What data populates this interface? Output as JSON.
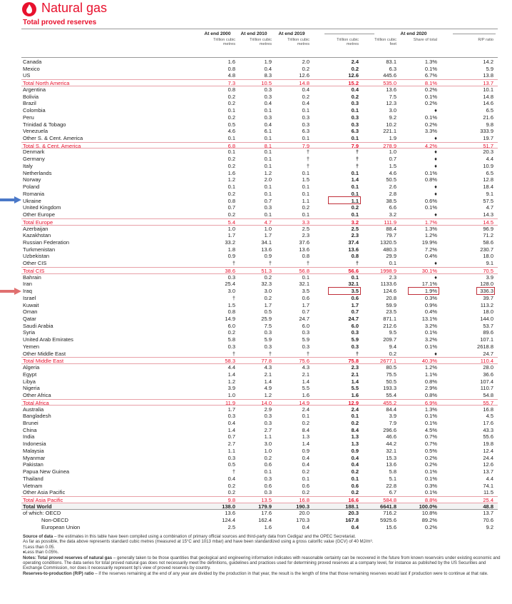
{
  "header": {
    "title": "Natural gas",
    "subtitle": "Total proved reserves"
  },
  "table": {
    "year_headers": [
      "At end 2000",
      "At end 2010",
      "At end 2019",
      "At end 2020"
    ],
    "units": [
      "Trillion cubic metres",
      "Trillion cubic metres",
      "Trillion cubic metres",
      "Trillion cubic metres",
      "Trillion cubic feet",
      "Share of total",
      "R/P ratio"
    ],
    "rows": [
      {
        "cells": [
          "Canada",
          "1.6",
          "1.9",
          "2.0",
          "2.4",
          "83.1",
          "1.3%",
          "14.2"
        ]
      },
      {
        "cells": [
          "Mexico",
          "0.8",
          "0.4",
          "0.2",
          "0.2",
          "6.3",
          "0.1%",
          "5.9"
        ]
      },
      {
        "cells": [
          "US",
          "4.8",
          "8.3",
          "12.6",
          "12.6",
          "445.6",
          "6.7%",
          "13.8"
        ]
      },
      {
        "cells": [
          "Total North America",
          "7.3",
          "10.5",
          "14.8",
          "15.2",
          "535.0",
          "8.1%",
          "13.7"
        ],
        "total": true
      },
      {
        "cells": [
          "Argentina",
          "0.8",
          "0.3",
          "0.4",
          "0.4",
          "13.6",
          "0.2%",
          "10.1"
        ]
      },
      {
        "cells": [
          "Bolivia",
          "0.2",
          "0.3",
          "0.2",
          "0.2",
          "7.5",
          "0.1%",
          "14.8"
        ]
      },
      {
        "cells": [
          "Brazil",
          "0.2",
          "0.4",
          "0.4",
          "0.3",
          "12.3",
          "0.2%",
          "14.6"
        ]
      },
      {
        "cells": [
          "Colombia",
          "0.1",
          "0.1",
          "0.1",
          "0.1",
          "3.0",
          "♦",
          "6.5"
        ]
      },
      {
        "cells": [
          "Peru",
          "0.2",
          "0.3",
          "0.3",
          "0.3",
          "9.2",
          "0.1%",
          "21.6"
        ]
      },
      {
        "cells": [
          "Trinidad & Tobago",
          "0.5",
          "0.4",
          "0.3",
          "0.3",
          "10.2",
          "0.2%",
          "9.8"
        ]
      },
      {
        "cells": [
          "Venezuela",
          "4.6",
          "6.1",
          "6.3",
          "6.3",
          "221.1",
          "3.3%",
          "333.9"
        ]
      },
      {
        "cells": [
          "Other S. & Cent. America",
          "0.1",
          "0.1",
          "0.1",
          "0.1",
          "1.9",
          "♦",
          "19.7"
        ]
      },
      {
        "cells": [
          "Total S. & Cent. America",
          "6.8",
          "8.1",
          "7.9",
          "7.9",
          "278.9",
          "4.2%",
          "51.7"
        ],
        "total": true
      },
      {
        "cells": [
          "Denmark",
          "0.1",
          "0.1",
          "†",
          "†",
          "1.0",
          "♦",
          "20.3"
        ]
      },
      {
        "cells": [
          "Germany",
          "0.2",
          "0.1",
          "†",
          "†",
          "0.7",
          "♦",
          "4.4"
        ]
      },
      {
        "cells": [
          "Italy",
          "0.2",
          "0.1",
          "†",
          "†",
          "1.5",
          "♦",
          "10.9"
        ]
      },
      {
        "cells": [
          "Netherlands",
          "1.6",
          "1.2",
          "0.1",
          "0.1",
          "4.6",
          "0.1%",
          "6.5"
        ]
      },
      {
        "cells": [
          "Norway",
          "1.2",
          "2.0",
          "1.5",
          "1.4",
          "50.5",
          "0.8%",
          "12.8"
        ]
      },
      {
        "cells": [
          "Poland",
          "0.1",
          "0.1",
          "0.1",
          "0.1",
          "2.6",
          "♦",
          "18.4"
        ]
      },
      {
        "cells": [
          "Romania",
          "0.2",
          "0.1",
          "0.1",
          "0.1",
          "2.8",
          "♦",
          "9.1"
        ]
      },
      {
        "cells": [
          "Ukraine",
          "0.8",
          "0.7",
          "1.1",
          "1.1",
          "38.5",
          "0.6%",
          "57.5"
        ]
      },
      {
        "cells": [
          "United Kingdom",
          "0.7",
          "0.3",
          "0.2",
          "0.2",
          "6.6",
          "0.1%",
          "4.7"
        ]
      },
      {
        "cells": [
          "Other Europe",
          "0.2",
          "0.1",
          "0.1",
          "0.1",
          "3.2",
          "♦",
          "14.3"
        ]
      },
      {
        "cells": [
          "Total Europe",
          "5.4",
          "4.7",
          "3.3",
          "3.2",
          "111.9",
          "1.7%",
          "14.5"
        ],
        "total": true
      },
      {
        "cells": [
          "Azerbaijan",
          "1.0",
          "1.0",
          "2.5",
          "2.5",
          "88.4",
          "1.3%",
          "96.9"
        ]
      },
      {
        "cells": [
          "Kazakhstan",
          "1.7",
          "1.7",
          "2.3",
          "2.3",
          "79.7",
          "1.2%",
          "71.2"
        ]
      },
      {
        "cells": [
          "Russian Federation",
          "33.2",
          "34.1",
          "37.6",
          "37.4",
          "1320.5",
          "19.9%",
          "58.6"
        ]
      },
      {
        "cells": [
          "Turkmenistan",
          "1.8",
          "13.6",
          "13.6",
          "13.6",
          "480.3",
          "7.2%",
          "230.7"
        ]
      },
      {
        "cells": [
          "Uzbekistan",
          "0.9",
          "0.9",
          "0.8",
          "0.8",
          "29.9",
          "0.4%",
          "18.0"
        ]
      },
      {
        "cells": [
          "Other CIS",
          "†",
          "†",
          "†",
          "†",
          "0.1",
          "♦",
          "9.1"
        ]
      },
      {
        "cells": [
          "Total CIS",
          "38.6",
          "51.3",
          "56.8",
          "56.6",
          "1998.9",
          "30.1%",
          "70.5"
        ],
        "total": true
      },
      {
        "cells": [
          "Bahrain",
          "0.3",
          "0.2",
          "0.1",
          "0.1",
          "2.3",
          "♦",
          "3.9"
        ]
      },
      {
        "cells": [
          "Iran",
          "25.4",
          "32.3",
          "32.1",
          "32.1",
          "1133.6",
          "17.1%",
          "128.0"
        ]
      },
      {
        "cells": [
          "Iraq",
          "3.0",
          "3.0",
          "3.5",
          "3.5",
          "124.6",
          "1.9%",
          "336.3"
        ]
      },
      {
        "cells": [
          "Israel",
          "†",
          "0.2",
          "0.6",
          "0.6",
          "20.8",
          "0.3%",
          "39.7"
        ]
      },
      {
        "cells": [
          "Kuwait",
          "1.5",
          "1.7",
          "1.7",
          "1.7",
          "59.9",
          "0.9%",
          "113.2"
        ]
      },
      {
        "cells": [
          "Oman",
          "0.8",
          "0.5",
          "0.7",
          "0.7",
          "23.5",
          "0.4%",
          "18.0"
        ]
      },
      {
        "cells": [
          "Qatar",
          "14.9",
          "25.9",
          "24.7",
          "24.7",
          "871.1",
          "13.1%",
          "144.0"
        ]
      },
      {
        "cells": [
          "Saudi Arabia",
          "6.0",
          "7.5",
          "6.0",
          "6.0",
          "212.6",
          "3.2%",
          "53.7"
        ]
      },
      {
        "cells": [
          "Syria",
          "0.2",
          "0.3",
          "0.3",
          "0.3",
          "9.5",
          "0.1%",
          "89.6"
        ]
      },
      {
        "cells": [
          "United Arab Emirates",
          "5.8",
          "5.9",
          "5.9",
          "5.9",
          "209.7",
          "3.2%",
          "107.1"
        ]
      },
      {
        "cells": [
          "Yemen",
          "0.3",
          "0.3",
          "0.3",
          "0.3",
          "9.4",
          "0.1%",
          "2618.8"
        ]
      },
      {
        "cells": [
          "Other Middle East",
          "†",
          "†",
          "†",
          "†",
          "0.2",
          "♦",
          "24.7"
        ]
      },
      {
        "cells": [
          "Total Middle East",
          "58.3",
          "77.8",
          "75.6",
          "75.8",
          "2677.1",
          "40.3%",
          "110.4"
        ],
        "total": true
      },
      {
        "cells": [
          "Algeria",
          "4.4",
          "4.3",
          "4.3",
          "2.3",
          "80.5",
          "1.2%",
          "28.0"
        ]
      },
      {
        "cells": [
          "Egypt",
          "1.4",
          "2.1",
          "2.1",
          "2.1",
          "75.5",
          "1.1%",
          "36.6"
        ]
      },
      {
        "cells": [
          "Libya",
          "1.2",
          "1.4",
          "1.4",
          "1.4",
          "50.5",
          "0.8%",
          "107.4"
        ]
      },
      {
        "cells": [
          "Nigeria",
          "3.9",
          "4.9",
          "5.5",
          "5.5",
          "193.3",
          "2.9%",
          "110.7"
        ]
      },
      {
        "cells": [
          "Other Africa",
          "1.0",
          "1.2",
          "1.6",
          "1.6",
          "55.4",
          "0.8%",
          "54.8"
        ]
      },
      {
        "cells": [
          "Total Africa",
          "11.9",
          "14.0",
          "14.9",
          "12.9",
          "455.2",
          "6.9%",
          "55.7"
        ],
        "total": true
      },
      {
        "cells": [
          "Australia",
          "1.7",
          "2.9",
          "2.4",
          "2.4",
          "84.4",
          "1.3%",
          "16.8"
        ]
      },
      {
        "cells": [
          "Bangladesh",
          "0.3",
          "0.3",
          "0.1",
          "0.1",
          "3.9",
          "0.1%",
          "4.5"
        ]
      },
      {
        "cells": [
          "Brunei",
          "0.4",
          "0.3",
          "0.2",
          "0.2",
          "7.9",
          "0.1%",
          "17.6"
        ]
      },
      {
        "cells": [
          "China",
          "1.4",
          "2.7",
          "8.4",
          "8.4",
          "296.6",
          "4.5%",
          "43.3"
        ]
      },
      {
        "cells": [
          "India",
          "0.7",
          "1.1",
          "1.3",
          "1.3",
          "46.6",
          "0.7%",
          "55.6"
        ]
      },
      {
        "cells": [
          "Indonesia",
          "2.7",
          "3.0",
          "1.4",
          "1.3",
          "44.2",
          "0.7%",
          "19.8"
        ]
      },
      {
        "cells": [
          "Malaysia",
          "1.1",
          "1.0",
          "0.9",
          "0.9",
          "32.1",
          "0.5%",
          "12.4"
        ]
      },
      {
        "cells": [
          "Myanmar",
          "0.3",
          "0.2",
          "0.4",
          "0.4",
          "15.3",
          "0.2%",
          "24.4"
        ]
      },
      {
        "cells": [
          "Pakistan",
          "0.5",
          "0.6",
          "0.4",
          "0.4",
          "13.6",
          "0.2%",
          "12.6"
        ]
      },
      {
        "cells": [
          "Papua New Guinea",
          "†",
          "0.1",
          "0.2",
          "0.2",
          "5.8",
          "0.1%",
          "13.7"
        ]
      },
      {
        "cells": [
          "Thailand",
          "0.4",
          "0.3",
          "0.1",
          "0.1",
          "5.1",
          "0.1%",
          "4.4"
        ]
      },
      {
        "cells": [
          "Vietnam",
          "0.2",
          "0.6",
          "0.6",
          "0.6",
          "22.8",
          "0.3%",
          "74.1"
        ]
      },
      {
        "cells": [
          "Other Asia Pacific",
          "0.2",
          "0.3",
          "0.2",
          "0.2",
          "6.7",
          "0.1%",
          "11.5"
        ]
      },
      {
        "cells": [
          "Total Asia Pacific",
          "9.8",
          "13.5",
          "16.8",
          "16.6",
          "584.8",
          "8.8%",
          "25.4"
        ],
        "total": true
      },
      {
        "cells": [
          "Total World",
          "138.0",
          "179.9",
          "190.3",
          "188.1",
          "6641.8",
          "100.0%",
          "48.8"
        ],
        "world": true
      },
      {
        "cells": [
          "of which: OECD",
          "13.6",
          "17.6",
          "20.0",
          "20.3",
          "716.2",
          "10.8%",
          "13.7"
        ]
      },
      {
        "cells": [
          "Non-OECD",
          "124.4",
          "162.4",
          "170.3",
          "167.8",
          "5925.6",
          "89.2%",
          "70.6"
        ],
        "indent": true
      },
      {
        "cells": [
          "European Union",
          "2.5",
          "1.6",
          "0.4",
          "0.4",
          "15.6",
          "0.2%",
          "9.2"
        ],
        "indent": true
      }
    ]
  },
  "notes": {
    "source_lead": "Source of data",
    "source_text": " – the estimates in this table have been compiled using a combination of primary official sources and third-party data from Cedigaz and the OPEC Secretariat.",
    "standard": "As far as possible, the data above represents standard cubic metres (measured at 15°C and 1013 mbar) and have been standardized using a gross calorific value (GCV) of 40 MJ/m³.",
    "dagger": "†Less than 0.05.",
    "diamond": "♦Less than 0.05%.",
    "notes_lead": "Notes: Total proved reserves of natural gas",
    "notes_text": " – generally taken to be those quantities that geological and engineering information indicates with reasonable certainty can be recovered in the future from known reservoirs under existing economic and operating conditions. The data series for total proved natural gas does not necessarily meet the definitions, guidelines and practices used for determining proved reserves at a company level, for instance as published by the US Securities and Exchange Commission, nor does it necessarily represent bp's view of proved reserves by country.",
    "rp_lead": "Reserves-to-production (R/P) ratio",
    "rp_text": " – if the reserves remaining at the end of any year are divided by the production in that year, the result is the length of time that those remaining reserves would last if production were to continue at that rate."
  }
}
